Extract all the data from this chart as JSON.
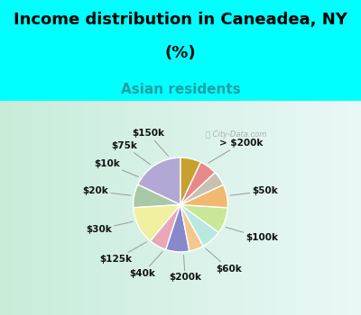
{
  "title_line1": "Income distribution in Caneadea, NY",
  "title_line2": "(%)",
  "subtitle": "Asian residents",
  "bg_cyan": "#00FFFF",
  "labels": [
    "> $200k",
    "$50k",
    "$100k",
    "$60k",
    "$200k",
    "$40k",
    "$125k",
    "$30k",
    "$20k",
    "$10k",
    "$75k",
    "$150k"
  ],
  "values": [
    18,
    8,
    13,
    6,
    8,
    5,
    7,
    9,
    8,
    5,
    6,
    7
  ],
  "colors": [
    "#b3a8d4",
    "#a8c8a8",
    "#f0f0a0",
    "#e8a8b8",
    "#8888cc",
    "#f0c890",
    "#b8e8e0",
    "#c8e898",
    "#f0b870",
    "#c8c0b0",
    "#e88888",
    "#c8a030"
  ],
  "startangle": 90,
  "watermark": "City-Data.com",
  "title_fontsize": 13,
  "subtitle_fontsize": 11,
  "label_fontsize": 7.5
}
